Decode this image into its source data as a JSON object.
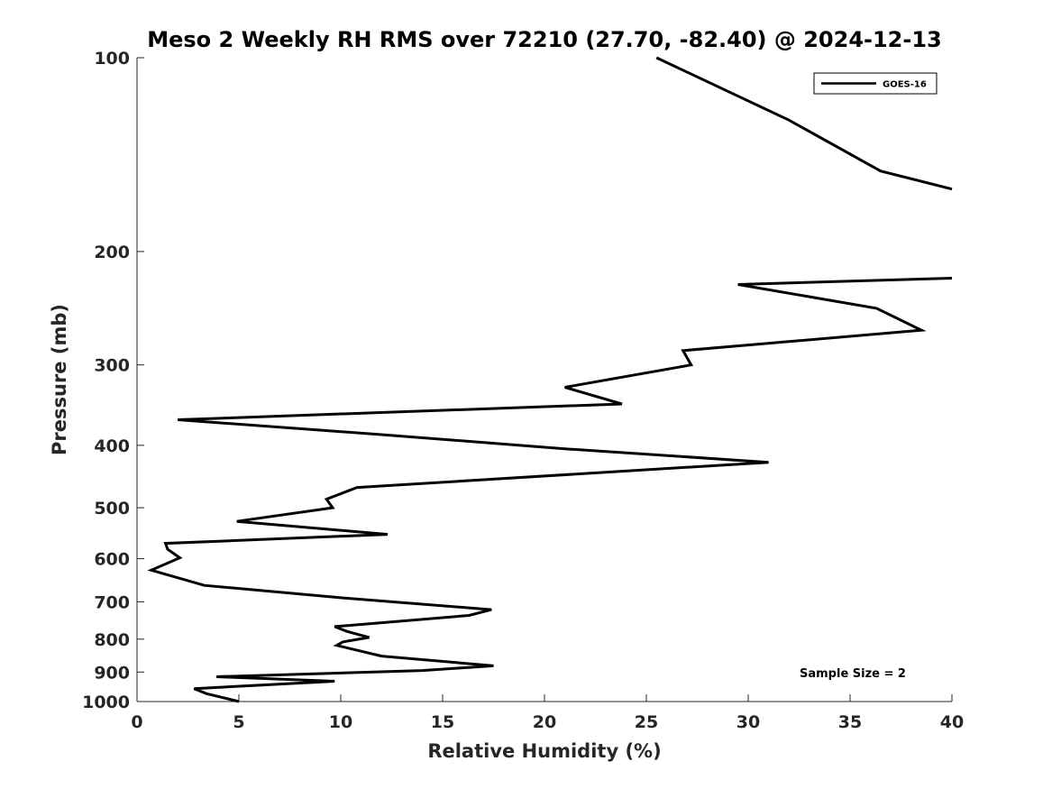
{
  "chart_data": {
    "type": "line",
    "title": "Meso 2 Weekly RH RMS over 72210 (27.70, -82.40) @ 2024-12-13",
    "xlabel": "Relative Humidity (%)",
    "ylabel": "Pressure (mb)",
    "xlim": [
      0,
      40
    ],
    "ylim": [
      1000,
      100
    ],
    "y_scale": "log",
    "y_reversed": true,
    "x_ticks": [
      0,
      5,
      10,
      15,
      20,
      25,
      30,
      35,
      40
    ],
    "y_ticks": [
      100,
      200,
      300,
      400,
      500,
      600,
      700,
      800,
      900,
      1000
    ],
    "grid": false,
    "legend_position": "top-right",
    "annotation": "Sample Size = 2",
    "series": [
      {
        "name": "GOES-16",
        "color": "#000000",
        "segments": [
          {
            "x": [
              25.5,
              32.0,
              36.5,
              40.0
            ],
            "y": [
              100,
              125,
              150,
              160
            ]
          },
          {
            "x": [
              40.0,
              29.5,
              36.3,
              38.5,
              26.8,
              27.2,
              21.0,
              23.8,
              2.0,
              12.0,
              21.0,
              31.0,
              10.8,
              9.3,
              9.6,
              4.9,
              12.3,
              1.4,
              1.5,
              2.1,
              0.7,
              3.3,
              10.0,
              17.4,
              16.3,
              9.7,
              10.3,
              11.4,
              10.1,
              9.8,
              12.0,
              17.5,
              14.0,
              3.9,
              9.7,
              2.8,
              3.4,
              5.0
            ],
            "y": [
              220,
              225,
              245,
              265,
              285,
              300,
              325,
              345,
              365,
              385,
              405,
              425,
              465,
              485,
              500,
              525,
              550,
              568,
              580,
              598,
              625,
              660,
              690,
              720,
              735,
              765,
              778,
              795,
              808,
              818,
              850,
              880,
              895,
              915,
              930,
              955,
              972,
              1000
            ]
          }
        ]
      }
    ]
  }
}
